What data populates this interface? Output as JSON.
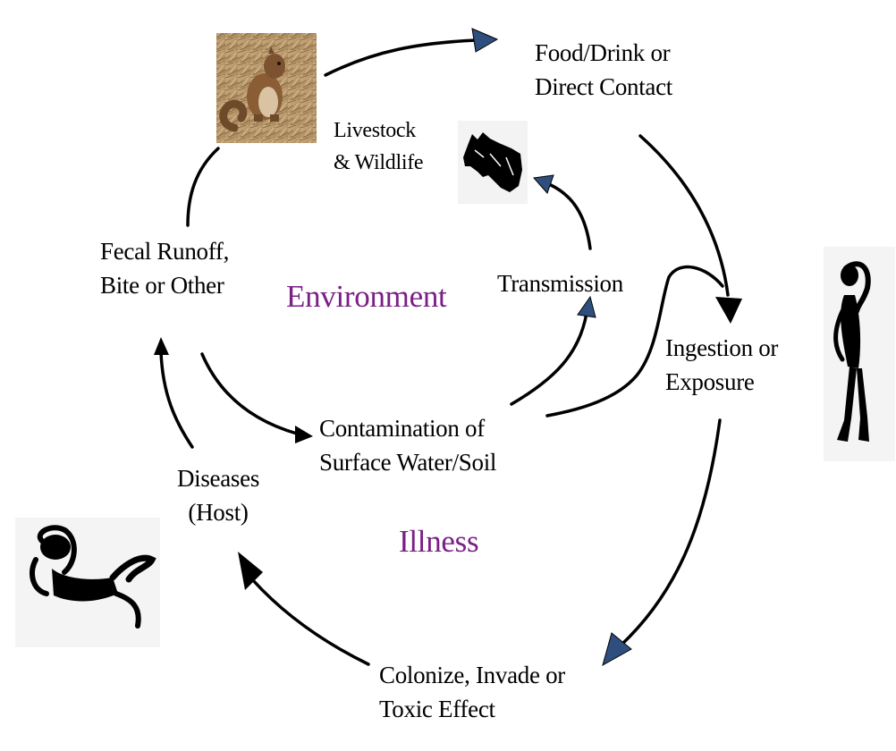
{
  "colors": {
    "accent_text": "#7a1f86",
    "arrow_head_blue": "#2e4f7e",
    "arrow_head_black": "#000000",
    "line": "#000000"
  },
  "labels": {
    "food_drink": [
      "Food/Drink or",
      "Direct Contact"
    ],
    "livestock": [
      "Livestock",
      "& Wildlife"
    ],
    "fecal": [
      "Fecal Runoff,",
      "Bite or Other"
    ],
    "environment": "Environment",
    "transmission": "Transmission",
    "ingestion": [
      "Ingestion or",
      "Exposure"
    ],
    "contamination": [
      "Contamination of",
      "Surface Water/Soil"
    ],
    "diseases": [
      "Diseases",
      "(Host)"
    ],
    "illness": "Illness",
    "colonize": [
      "Colonize, Invade or",
      "Toxic Effect"
    ]
  },
  "icons": {
    "squirrel": "squirrel-photo-icon",
    "cow": "cow-silhouette-icon",
    "standing_person": "standing-person-icon",
    "lying_person": "lying-sick-person-icon"
  }
}
